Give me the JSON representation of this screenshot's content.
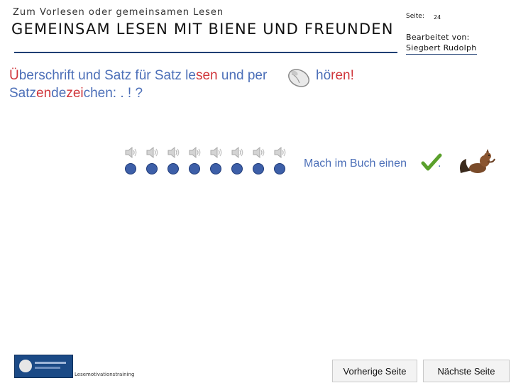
{
  "header": {
    "subtitle": "Zum Vorlesen oder gemeinsamen Lesen",
    "title": "GEMEINSAM LESEN MIT BIENE UND FREUNDEN",
    "page_label": "Seite:",
    "page_number": "24",
    "editor_label": "Bearbeitet von:",
    "editor_name": "Siegbert Rudolph"
  },
  "instruction": {
    "line1": [
      {
        "text": "Ü",
        "hl": true
      },
      {
        "text": "berschrift und Satz für Satz le",
        "hl": false
      },
      {
        "text": "sen",
        "hl": true
      },
      {
        "text": " und per",
        "hl": false
      }
    ],
    "line1_after_icon": [
      {
        "text": "hö",
        "hl": false
      },
      {
        "text": "ren!",
        "hl": true
      }
    ],
    "line2": [
      {
        "text": "Satz",
        "hl": false
      },
      {
        "text": "en",
        "hl": true
      },
      {
        "text": "de",
        "hl": false
      },
      {
        "text": "zei",
        "hl": true
      },
      {
        "text": "chen: . ! ?",
        "hl": false
      }
    ],
    "mouse_icon": "computer-mouse-icon"
  },
  "audio": {
    "speaker_icon": "speaker-icon",
    "speaker_count": 8,
    "dot_color": "#3d5fa8",
    "mach_text": "Mach im Buch einen",
    "mach_suffix": ".",
    "check_icon": "checkmark-icon",
    "squirrel_icon": "squirrel-icon"
  },
  "footer": {
    "logo_icon": "publisher-logo-icon",
    "training_text": "Lesemotivationstraining",
    "prev_label": "Vorherige Seite",
    "next_label": "Nächste Seite"
  },
  "colors": {
    "instruction_blue": "#4c6fb8",
    "highlight_red": "#d0363b",
    "rule_navy": "#1f3f73",
    "check_green": "#5aa02c"
  }
}
